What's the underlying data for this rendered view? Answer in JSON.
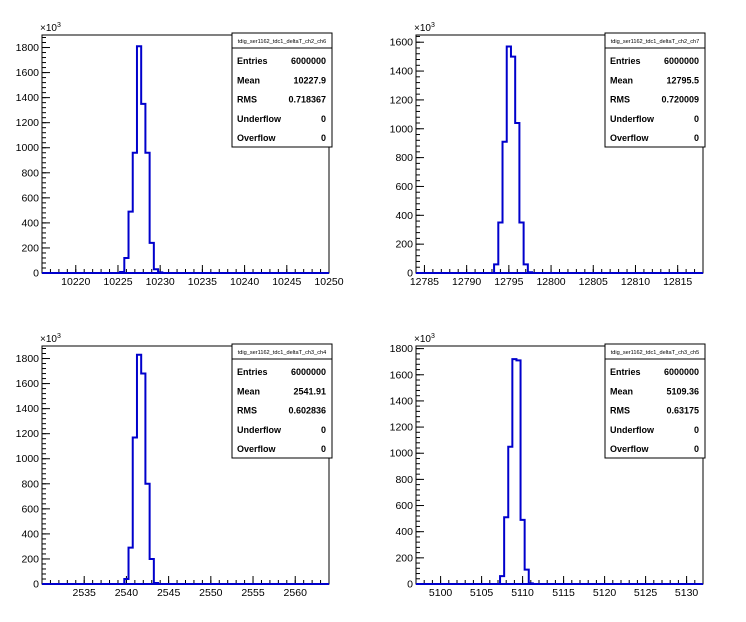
{
  "chart_data": [
    {
      "type": "histogram",
      "exponent_label": "×10",
      "exponent_power": "3",
      "xlim": [
        10216,
        10250
      ],
      "ylim": [
        0,
        1900
      ],
      "x_ticks": [
        10220,
        10225,
        10230,
        10235,
        10240,
        10245,
        10250
      ],
      "y_ticks": [
        0,
        200,
        400,
        600,
        800,
        1000,
        1200,
        1400,
        1600,
        1800
      ],
      "bin_width": 0.5,
      "bins": [
        {
          "x": 10225.5,
          "y": 8
        },
        {
          "x": 10226.0,
          "y": 120
        },
        {
          "x": 10226.5,
          "y": 490
        },
        {
          "x": 10227.0,
          "y": 960
        },
        {
          "x": 10227.5,
          "y": 1810
        },
        {
          "x": 10228.0,
          "y": 1350
        },
        {
          "x": 10228.5,
          "y": 960
        },
        {
          "x": 10229.0,
          "y": 240
        },
        {
          "x": 10229.5,
          "y": 30
        },
        {
          "x": 10230.0,
          "y": 5
        }
      ],
      "stats": {
        "title": "tdig_ser1162_tdc1_deltaT_ch2_ch6",
        "rows": [
          {
            "label": "Entries",
            "value": "6000000"
          },
          {
            "label": "Mean",
            "value": "10227.9"
          },
          {
            "label": "RMS",
            "value": "0.718367"
          },
          {
            "label": "Underflow",
            "value": "0"
          },
          {
            "label": "Overflow",
            "value": "0"
          }
        ]
      }
    },
    {
      "type": "histogram",
      "exponent_label": "×10",
      "exponent_power": "3",
      "xlim": [
        12784,
        12818
      ],
      "ylim": [
        0,
        1650
      ],
      "x_ticks": [
        12785,
        12790,
        12795,
        12800,
        12805,
        12810,
        12815
      ],
      "y_ticks": [
        0,
        200,
        400,
        600,
        800,
        1000,
        1200,
        1400,
        1600
      ],
      "bin_width": 0.5,
      "bins": [
        {
          "x": 12793.5,
          "y": 60
        },
        {
          "x": 12794.0,
          "y": 350
        },
        {
          "x": 12794.5,
          "y": 910
        },
        {
          "x": 12795.0,
          "y": 1570
        },
        {
          "x": 12795.5,
          "y": 1500
        },
        {
          "x": 12796.0,
          "y": 1040
        },
        {
          "x": 12796.5,
          "y": 350
        },
        {
          "x": 12797.0,
          "y": 60
        },
        {
          "x": 12797.5,
          "y": 5
        }
      ],
      "stats": {
        "title": "tdig_ser1162_tdc1_deltaT_ch2_ch7",
        "rows": [
          {
            "label": "Entries",
            "value": "6000000"
          },
          {
            "label": "Mean",
            "value": "12795.5"
          },
          {
            "label": "RMS",
            "value": "0.720009"
          },
          {
            "label": "Underflow",
            "value": "0"
          },
          {
            "label": "Overflow",
            "value": "0"
          }
        ]
      }
    },
    {
      "type": "histogram",
      "exponent_label": "×10",
      "exponent_power": "3",
      "xlim": [
        2530,
        2564
      ],
      "ylim": [
        0,
        1900
      ],
      "x_ticks": [
        2535,
        2540,
        2545,
        2550,
        2555,
        2560
      ],
      "y_ticks": [
        0,
        200,
        400,
        600,
        800,
        1000,
        1200,
        1400,
        1600,
        1800
      ],
      "bin_width": 0.5,
      "bins": [
        {
          "x": 2540.0,
          "y": 40
        },
        {
          "x": 2540.5,
          "y": 290
        },
        {
          "x": 2541.0,
          "y": 1170
        },
        {
          "x": 2541.5,
          "y": 1830
        },
        {
          "x": 2542.0,
          "y": 1680
        },
        {
          "x": 2542.5,
          "y": 800
        },
        {
          "x": 2543.0,
          "y": 200
        },
        {
          "x": 2543.5,
          "y": 8
        }
      ],
      "stats": {
        "title": "tdig_ser1162_tdc1_deltaT_ch3_ch4",
        "rows": [
          {
            "label": "Entries",
            "value": "6000000"
          },
          {
            "label": "Mean",
            "value": "2541.91"
          },
          {
            "label": "RMS",
            "value": "0.602836"
          },
          {
            "label": "Underflow",
            "value": "0"
          },
          {
            "label": "Overflow",
            "value": "0"
          }
        ]
      }
    },
    {
      "type": "histogram",
      "exponent_label": "×10",
      "exponent_power": "3",
      "xlim": [
        5097,
        5132
      ],
      "ylim": [
        0,
        1820
      ],
      "x_ticks": [
        5100,
        5105,
        5110,
        5115,
        5120,
        5125,
        5130
      ],
      "y_ticks": [
        0,
        200,
        400,
        600,
        800,
        1000,
        1200,
        1400,
        1600,
        1800
      ],
      "bin_width": 0.5,
      "bins": [
        {
          "x": 5107.5,
          "y": 60
        },
        {
          "x": 5108.0,
          "y": 510
        },
        {
          "x": 5108.5,
          "y": 1050
        },
        {
          "x": 5109.0,
          "y": 1720
        },
        {
          "x": 5109.5,
          "y": 1710
        },
        {
          "x": 5110.0,
          "y": 490
        },
        {
          "x": 5110.5,
          "y": 110
        },
        {
          "x": 5111.0,
          "y": 5
        }
      ],
      "stats": {
        "title": "tdig_ser1162_tdc1_deltaT_ch3_ch5",
        "rows": [
          {
            "label": "Entries",
            "value": "6000000"
          },
          {
            "label": "Mean",
            "value": "5109.36"
          },
          {
            "label": "RMS",
            "value": "0.63175"
          },
          {
            "label": "Underflow",
            "value": "0"
          },
          {
            "label": "Overflow",
            "value": "0"
          }
        ]
      }
    }
  ],
  "colors": {
    "histogram": "#0000cc",
    "axis": "#000000",
    "background": "#ffffff"
  }
}
